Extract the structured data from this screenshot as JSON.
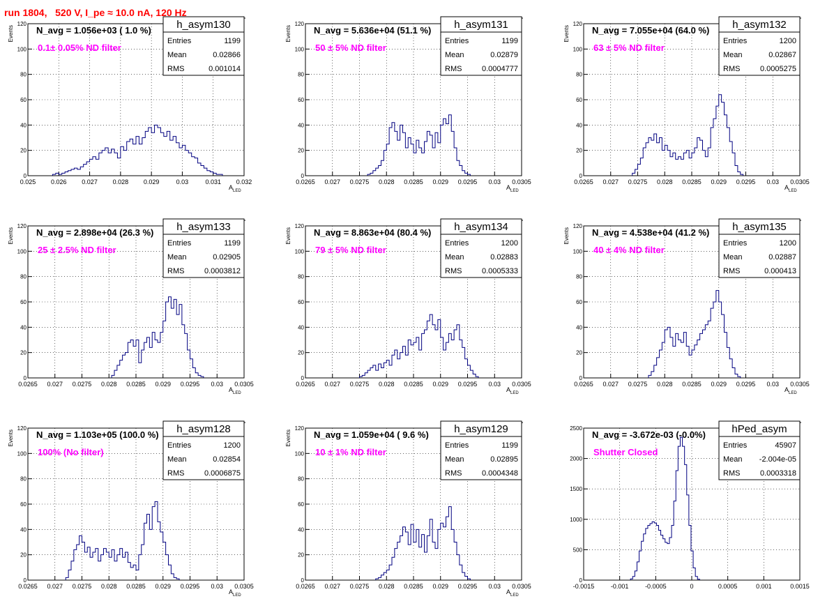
{
  "header": {
    "title": "run 1804,   520 V, I_pe ≈ 10.0 nA, 120 Hz"
  },
  "colors": {
    "histogram": "#000080",
    "annotation": "#ff00ff",
    "title": "#ff0000",
    "grid": "#000000"
  },
  "chart_data": [
    {
      "type": "histogram",
      "name": "h_asym130",
      "navg": "N_avg = 1.056e+03 ( 1.0 %)",
      "filter_label": "0.1± 0.05% ND filter",
      "stats": {
        "Entries": "1199",
        "Mean": "0.02866",
        "RMS": "0.001014"
      },
      "xlabel": "A_LED",
      "ylabel": "Events",
      "xlim": [
        0.025,
        0.032
      ],
      "ylim": [
        0,
        120
      ],
      "xticks": [
        0.025,
        0.026,
        0.027,
        0.028,
        0.029,
        0.03,
        0.031,
        0.032
      ],
      "xtick_labels": [
        "0.025",
        "0.026",
        "0.027",
        "0.028",
        "0.029",
        "0.03",
        "0.031",
        "0.032"
      ],
      "yticks": [
        0,
        20,
        40,
        60,
        80,
        100,
        120
      ],
      "bin_start": 0.0258,
      "bin_width": 0.0001,
      "values": [
        1,
        2,
        1,
        2,
        3,
        4,
        5,
        6,
        5,
        7,
        9,
        11,
        13,
        15,
        13,
        18,
        20,
        22,
        18,
        21,
        18,
        14,
        23,
        20,
        27,
        29,
        25,
        31,
        25,
        30,
        35,
        38,
        34,
        40,
        38,
        34,
        31,
        35,
        28,
        31,
        26,
        22,
        24,
        20,
        18,
        15,
        14,
        10,
        8,
        6,
        4,
        3,
        2,
        1,
        1
      ]
    },
    {
      "type": "histogram",
      "name": "h_asym131",
      "navg": "N_avg = 5.636e+04 (51.1 %)",
      "filter_label": "50 ± 5% ND filter",
      "stats": {
        "Entries": "1199",
        "Mean": "0.02879",
        "RMS": "0.0004777"
      },
      "xlabel": "A_LED",
      "ylabel": "Events",
      "xlim": [
        0.0265,
        0.0305
      ],
      "ylim": [
        0,
        120
      ],
      "xticks": [
        0.0265,
        0.027,
        0.0275,
        0.028,
        0.0285,
        0.029,
        0.0295,
        0.03,
        0.0305
      ],
      "xtick_labels": [
        "0.0265",
        "0.027",
        "0.0275",
        "0.028",
        "0.0285",
        "0.029",
        "0.0295",
        "0.03",
        "0.0305"
      ],
      "yticks": [
        0,
        20,
        40,
        60,
        80,
        100,
        120
      ],
      "bin_start": 0.02765,
      "bin_width": 5e-05,
      "values": [
        1,
        2,
        4,
        6,
        8,
        12,
        20,
        25,
        38,
        42,
        35,
        28,
        40,
        34,
        22,
        30,
        25,
        18,
        28,
        22,
        18,
        27,
        35,
        32,
        22,
        34,
        26,
        40,
        45,
        41,
        48,
        35,
        22,
        12,
        8,
        4,
        2,
        1
      ]
    },
    {
      "type": "histogram",
      "name": "h_asym132",
      "navg": "N_avg = 7.055e+04 (64.0 %)",
      "filter_label": "63 ± 5% ND filter",
      "stats": {
        "Entries": "1200",
        "Mean": "0.02867",
        "RMS": "0.0005275"
      },
      "xlabel": "A_LED",
      "ylabel": "Events",
      "xlim": [
        0.0265,
        0.0305
      ],
      "ylim": [
        0,
        120
      ],
      "xticks": [
        0.0265,
        0.027,
        0.0275,
        0.028,
        0.0285,
        0.029,
        0.0295,
        0.03,
        0.0305
      ],
      "xtick_labels": [
        "0.0265",
        "0.027",
        "0.0275",
        "0.028",
        "0.0285",
        "0.029",
        "0.0295",
        "0.03",
        "0.0305"
      ],
      "yticks": [
        0,
        20,
        40,
        60,
        80,
        100,
        120
      ],
      "bin_start": 0.0274,
      "bin_width": 5e-05,
      "values": [
        2,
        5,
        9,
        14,
        22,
        26,
        30,
        28,
        33,
        26,
        30,
        20,
        24,
        20,
        15,
        18,
        13,
        15,
        13,
        18,
        20,
        14,
        18,
        22,
        30,
        28,
        20,
        15,
        22,
        38,
        45,
        55,
        64,
        58,
        48,
        38,
        27,
        18,
        8,
        3,
        1
      ]
    },
    {
      "type": "histogram",
      "name": "h_asym133",
      "navg": "N_avg = 2.898e+04 (26.3 %)",
      "filter_label": "25 ± 2.5% ND filter",
      "stats": {
        "Entries": "1199",
        "Mean": "0.02905",
        "RMS": "0.0003812"
      },
      "xlabel": "A_LED",
      "ylabel": "Events",
      "xlim": [
        0.0265,
        0.0305
      ],
      "ylim": [
        0,
        120
      ],
      "xticks": [
        0.0265,
        0.027,
        0.0275,
        0.028,
        0.0285,
        0.029,
        0.0295,
        0.03,
        0.0305
      ],
      "xtick_labels": [
        "0.0265",
        "0.027",
        "0.0275",
        "0.028",
        "0.0285",
        "0.029",
        "0.0295",
        "0.03",
        "0.0305"
      ],
      "yticks": [
        0,
        20,
        40,
        60,
        80,
        100,
        120
      ],
      "bin_start": 0.02805,
      "bin_width": 5e-05,
      "values": [
        2,
        6,
        10,
        14,
        18,
        20,
        28,
        30,
        25,
        30,
        12,
        22,
        28,
        32,
        24,
        36,
        30,
        28,
        36,
        45,
        60,
        64,
        55,
        62,
        50,
        58,
        42,
        35,
        22,
        15,
        8,
        4,
        2,
        1
      ]
    },
    {
      "type": "histogram",
      "name": "h_asym134",
      "navg": "N_avg = 8.863e+04 (80.4 %)",
      "filter_label": "79 ± 5% ND filter",
      "stats": {
        "Entries": "1200",
        "Mean": "0.02883",
        "RMS": "0.0005333"
      },
      "xlabel": "A_LED",
      "ylabel": "Events",
      "xlim": [
        0.0265,
        0.0305
      ],
      "ylim": [
        0,
        120
      ],
      "xticks": [
        0.0265,
        0.027,
        0.0275,
        0.028,
        0.0285,
        0.029,
        0.0295,
        0.03,
        0.0305
      ],
      "xtick_labels": [
        "0.0265",
        "0.027",
        "0.0275",
        "0.028",
        "0.0285",
        "0.029",
        "0.0295",
        "0.03",
        "0.0305"
      ],
      "yticks": [
        0,
        20,
        40,
        60,
        80,
        100,
        120
      ],
      "bin_start": 0.0275,
      "bin_width": 5e-05,
      "values": [
        1,
        2,
        4,
        6,
        8,
        10,
        6,
        11,
        8,
        12,
        14,
        10,
        18,
        22,
        15,
        20,
        25,
        18,
        30,
        26,
        28,
        32,
        22,
        35,
        38,
        45,
        50,
        42,
        38,
        46,
        32,
        22,
        28,
        35,
        30,
        38,
        42,
        30,
        24,
        15,
        10,
        6,
        3,
        1
      ]
    },
    {
      "type": "histogram",
      "name": "h_asym135",
      "navg": "N_avg = 4.538e+04 (41.2 %)",
      "filter_label": "40 ± 4% ND filter",
      "stats": {
        "Entries": "1200",
        "Mean": "0.02887",
        "RMS": "0.000413"
      },
      "xlabel": "A_LED",
      "ylabel": "Events",
      "xlim": [
        0.0265,
        0.0305
      ],
      "ylim": [
        0,
        120
      ],
      "xticks": [
        0.0265,
        0.027,
        0.0275,
        0.028,
        0.0285,
        0.029,
        0.0295,
        0.03,
        0.0305
      ],
      "xtick_labels": [
        "0.0265",
        "0.027",
        "0.0275",
        "0.028",
        "0.0285",
        "0.029",
        "0.0295",
        "0.03",
        "0.0305"
      ],
      "yticks": [
        0,
        20,
        40,
        60,
        80,
        100,
        120
      ],
      "bin_start": 0.0277,
      "bin_width": 5e-05,
      "values": [
        2,
        5,
        10,
        16,
        22,
        28,
        38,
        40,
        32,
        25,
        35,
        30,
        28,
        36,
        25,
        18,
        22,
        26,
        30,
        35,
        38,
        42,
        45,
        55,
        60,
        69,
        60,
        50,
        36,
        24,
        15,
        8,
        3,
        1
      ]
    },
    {
      "type": "histogram",
      "name": "h_asym128",
      "navg": "N_avg = 1.103e+05 (100.0 %)",
      "filter_label": "100% (No filter)",
      "stats": {
        "Entries": "1200",
        "Mean": "0.02854",
        "RMS": "0.0006875"
      },
      "xlabel": "A_LED",
      "ylabel": "Events",
      "xlim": [
        0.0265,
        0.0305
      ],
      "ylim": [
        0,
        120
      ],
      "xticks": [
        0.0265,
        0.027,
        0.0275,
        0.028,
        0.0285,
        0.029,
        0.0295,
        0.03,
        0.0305
      ],
      "xtick_labels": [
        "0.0265",
        "0.027",
        "0.0275",
        "0.028",
        "0.0285",
        "0.029",
        "0.0295",
        "0.03",
        "0.0305"
      ],
      "yticks": [
        0,
        20,
        40,
        60,
        80,
        100,
        120
      ],
      "bin_start": 0.0272,
      "bin_width": 5e-05,
      "values": [
        2,
        8,
        15,
        24,
        28,
        35,
        30,
        22,
        26,
        18,
        22,
        25,
        15,
        20,
        25,
        22,
        18,
        24,
        15,
        20,
        25,
        18,
        22,
        14,
        10,
        12,
        8,
        20,
        28,
        45,
        52,
        40,
        58,
        62,
        46,
        38,
        30,
        20,
        12,
        5,
        2,
        1
      ]
    },
    {
      "type": "histogram",
      "name": "h_asym129",
      "navg": "N_avg = 1.059e+04 ( 9.6 %)",
      "filter_label": "10 ± 1% ND filter",
      "stats": {
        "Entries": "1199",
        "Mean": "0.02895",
        "RMS": "0.0004348"
      },
      "xlabel": "A_LED",
      "ylabel": "Events",
      "xlim": [
        0.0265,
        0.0305
      ],
      "ylim": [
        0,
        120
      ],
      "xticks": [
        0.0265,
        0.027,
        0.0275,
        0.028,
        0.0285,
        0.029,
        0.0295,
        0.03,
        0.0305
      ],
      "xtick_labels": [
        "0.0265",
        "0.027",
        "0.0275",
        "0.028",
        "0.0285",
        "0.029",
        "0.0295",
        "0.03",
        "0.0305"
      ],
      "yticks": [
        0,
        20,
        40,
        60,
        80,
        100,
        120
      ],
      "bin_start": 0.0278,
      "bin_width": 5e-05,
      "values": [
        1,
        2,
        4,
        6,
        8,
        12,
        18,
        25,
        30,
        35,
        42,
        38,
        28,
        44,
        30,
        40,
        26,
        36,
        22,
        35,
        48,
        30,
        25,
        40,
        45,
        42,
        50,
        58,
        40,
        30,
        20,
        12,
        6,
        3,
        1
      ]
    },
    {
      "type": "histogram",
      "name": "hPed_asym",
      "navg": "N_avg = -3.672e-03 (-0.0%)",
      "filter_label": "Shutter Closed",
      "stats": {
        "Entries": "45907",
        "Mean": "-2.004e-05",
        "RMS": "0.0003318"
      },
      "xlabel": "",
      "ylabel": "",
      "xlim": [
        -0.0015,
        0.0015
      ],
      "ylim": [
        0,
        2500
      ],
      "xticks": [
        -0.0015,
        -0.001,
        -0.0005,
        0,
        0.0005,
        0.001,
        0.0015
      ],
      "xtick_labels": [
        "-0.0015",
        "-0.001",
        "-0.0005",
        "0",
        "0.0005",
        "0.001",
        "0.0015"
      ],
      "yticks": [
        0,
        500,
        1000,
        1500,
        2000,
        2500
      ],
      "bin_start": -0.00085,
      "bin_width": 3e-05,
      "values": [
        20,
        60,
        150,
        300,
        480,
        640,
        760,
        850,
        900,
        930,
        960,
        940,
        900,
        820,
        740,
        680,
        620,
        600,
        700,
        900,
        1300,
        1800,
        2200,
        2350,
        2200,
        1900,
        1400,
        900,
        480,
        200,
        60,
        15
      ]
    }
  ]
}
